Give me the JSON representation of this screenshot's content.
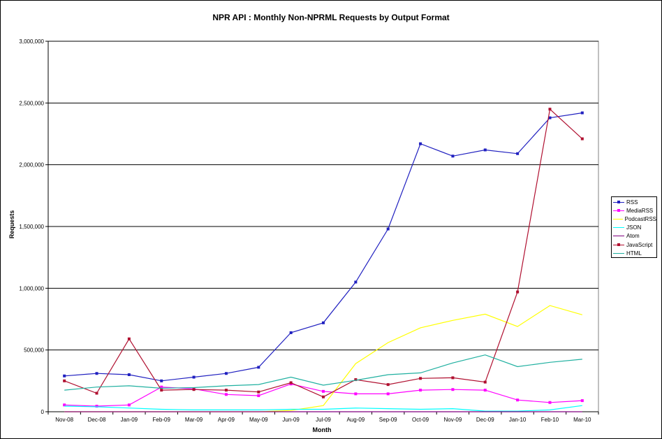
{
  "chart_data": {
    "type": "line",
    "title": "NPR API : Monthly Non-NPRML Requests by Output Format",
    "xlabel": "Month",
    "ylabel": "Requests",
    "ylim": [
      0,
      3000000
    ],
    "y_ticks": [
      0,
      500000,
      1000000,
      1500000,
      2000000,
      2500000,
      3000000
    ],
    "y_tick_labels": [
      "0",
      "500,000",
      "1,000,000",
      "1,500,000",
      "2,000,000",
      "2,500,000",
      "3,000,000"
    ],
    "grid": "horizontal",
    "legend_position": "right",
    "categories": [
      "Nov-08",
      "Dec-08",
      "Jan-09",
      "Feb-09",
      "Mar-09",
      "Apr-09",
      "May-09",
      "Jun-09",
      "Jul-09",
      "Aug-09",
      "Sep-09",
      "Oct-09",
      "Nov-09",
      "Dec-09",
      "Jan-10",
      "Feb-10",
      "Mar-10"
    ],
    "series": [
      {
        "name": "RSS",
        "color": "#2020c0",
        "marker": true,
        "values": [
          290000,
          310000,
          300000,
          250000,
          280000,
          310000,
          360000,
          640000,
          720000,
          1050000,
          1480000,
          2170000,
          2070000,
          2120000,
          2090000,
          2380000,
          2420000
        ]
      },
      {
        "name": "MediaRSS",
        "color": "#ff00ff",
        "marker": true,
        "values": [
          55000,
          45000,
          55000,
          200000,
          185000,
          140000,
          130000,
          225000,
          165000,
          145000,
          145000,
          175000,
          180000,
          175000,
          95000,
          75000,
          90000
        ]
      },
      {
        "name": "PodcastRSS",
        "color": "#ffff00",
        "marker": false,
        "values": [
          0,
          0,
          0,
          0,
          0,
          0,
          0,
          10000,
          50000,
          390000,
          560000,
          680000,
          740000,
          790000,
          690000,
          860000,
          785000
        ]
      },
      {
        "name": "JSON",
        "color": "#00ffff",
        "marker": false,
        "values": [
          45000,
          40000,
          30000,
          20000,
          15000,
          15000,
          15000,
          20000,
          20000,
          30000,
          25000,
          20000,
          25000,
          5000,
          5000,
          15000,
          50000
        ]
      },
      {
        "name": "Atom",
        "color": "#800080",
        "marker": false,
        "values": [
          0,
          0,
          0,
          0,
          0,
          0,
          0,
          0,
          0,
          0,
          0,
          0,
          0,
          0,
          0,
          0,
          0
        ]
      },
      {
        "name": "JavaScript",
        "color": "#b01030",
        "marker": true,
        "values": [
          250000,
          150000,
          590000,
          175000,
          180000,
          175000,
          160000,
          235000,
          120000,
          260000,
          220000,
          270000,
          275000,
          240000,
          970000,
          2450000,
          2210000
        ]
      },
      {
        "name": "HTML",
        "color": "#20b0a0",
        "marker": false,
        "values": [
          175000,
          200000,
          210000,
          190000,
          195000,
          210000,
          220000,
          280000,
          215000,
          255000,
          300000,
          315000,
          395000,
          460000,
          365000,
          400000,
          425000
        ]
      }
    ]
  }
}
